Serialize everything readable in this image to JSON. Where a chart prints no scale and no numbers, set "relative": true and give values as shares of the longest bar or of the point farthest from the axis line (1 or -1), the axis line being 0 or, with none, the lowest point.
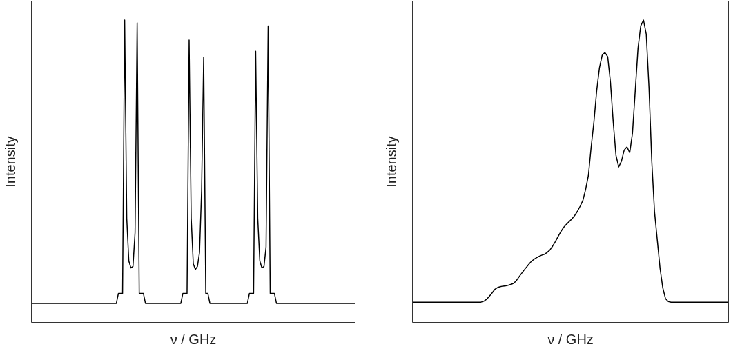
{
  "chart_data": [
    {
      "type": "line",
      "xlabel": "ν / GHz",
      "ylabel": "Intensity",
      "relative": true,
      "grid": false,
      "legend": false,
      "marker": "none",
      "line_style": "solid",
      "categories": [
        null,
        null,
        null,
        null,
        null,
        null,
        null,
        null,
        null,
        null,
        null,
        null,
        null,
        null,
        null,
        null,
        null,
        null,
        null,
        null,
        null,
        null,
        null,
        null,
        null,
        null,
        null,
        null,
        null,
        null,
        null,
        null,
        null,
        null,
        null,
        null,
        null,
        null,
        null,
        null,
        null,
        null,
        null,
        null,
        null,
        null,
        null,
        null,
        null,
        null,
        null,
        null,
        null,
        null,
        null,
        null,
        null,
        null,
        null,
        null,
        null,
        null,
        null,
        null,
        null,
        null,
        null,
        null,
        null,
        null,
        null,
        null,
        null,
        null,
        null,
        null,
        null,
        null,
        null,
        null,
        null,
        null,
        null,
        null,
        null,
        null,
        null,
        null,
        null,
        null,
        null,
        null,
        null,
        null,
        null,
        null,
        null,
        null,
        null,
        null,
        null,
        null,
        null,
        null,
        null,
        null,
        null,
        null,
        null,
        null,
        null,
        null,
        null,
        null,
        null,
        null,
        null,
        null,
        null,
        null,
        null,
        null,
        null,
        null,
        null,
        null,
        null,
        null,
        null,
        null,
        null,
        null,
        null,
        null,
        null,
        null,
        null,
        null,
        null,
        null,
        null,
        null,
        null,
        null,
        null,
        null,
        null,
        null,
        null,
        null,
        null,
        null,
        null,
        null,
        null,
        null,
        null
      ],
      "series": [
        {
          "color": "#000000",
          "values": [
            0.064,
            0.064,
            0.064,
            0.064,
            0.064,
            0.064,
            0.064,
            0.064,
            0.064,
            0.064,
            0.064,
            0.064,
            0.064,
            0.064,
            0.064,
            0.064,
            0.064,
            0.064,
            0.064,
            0.064,
            0.064,
            0.064,
            0.064,
            0.064,
            0.064,
            0.064,
            0.064,
            0.064,
            0.064,
            0.064,
            0.064,
            0.064,
            0.064,
            0.064,
            0.064,
            0.064,
            0.064,
            0.064,
            0.064,
            0.064,
            0.064,
            0.064,
            0.097,
            0.097,
            0.097,
            1.0,
            0.345,
            0.204,
            0.181,
            0.186,
            0.298,
            0.991,
            0.097,
            0.097,
            0.097,
            0.064,
            0.064,
            0.064,
            0.064,
            0.064,
            0.064,
            0.064,
            0.064,
            0.064,
            0.064,
            0.064,
            0.064,
            0.064,
            0.064,
            0.064,
            0.064,
            0.064,
            0.064,
            0.097,
            0.097,
            0.097,
            0.934,
            0.345,
            0.195,
            0.176,
            0.186,
            0.232,
            0.438,
            0.878,
            0.097,
            0.097,
            0.064,
            0.064,
            0.064,
            0.064,
            0.064,
            0.064,
            0.064,
            0.064,
            0.064,
            0.064,
            0.064,
            0.064,
            0.064,
            0.064,
            0.064,
            0.064,
            0.064,
            0.064,
            0.064,
            0.097,
            0.097,
            0.097,
            0.897,
            0.345,
            0.204,
            0.181,
            0.186,
            0.251,
            0.981,
            0.097,
            0.097,
            0.097,
            0.064,
            0.064,
            0.064,
            0.064,
            0.064,
            0.064,
            0.064,
            0.064,
            0.064,
            0.064,
            0.064,
            0.064,
            0.064,
            0.064,
            0.064,
            0.064,
            0.064,
            0.064,
            0.064,
            0.064,
            0.064,
            0.064,
            0.064,
            0.064,
            0.064,
            0.064,
            0.064,
            0.064,
            0.064,
            0.064,
            0.064,
            0.064,
            0.064,
            0.064,
            0.064,
            0.064,
            0.064,
            0.064,
            0.064
          ]
        }
      ]
    },
    {
      "type": "line",
      "xlabel": "ν / GHz",
      "ylabel": "Intensity",
      "relative": true,
      "grid": false,
      "legend": false,
      "marker": "none",
      "line_style": "solid",
      "categories": [
        null,
        null,
        null,
        null,
        null,
        null,
        null,
        null,
        null,
        null,
        null,
        null,
        null,
        null,
        null,
        null,
        null,
        null,
        null,
        null,
        null,
        null,
        null,
        null,
        null,
        null,
        null,
        null,
        null,
        null,
        null,
        null,
        null,
        null,
        null,
        null,
        null,
        null,
        null,
        null,
        null,
        null,
        null,
        null,
        null,
        null,
        null,
        null,
        null,
        null,
        null,
        null,
        null,
        null,
        null,
        null,
        null,
        null,
        null,
        null,
        null,
        null,
        null,
        null,
        null,
        null,
        null,
        null,
        null,
        null,
        null,
        null,
        null,
        null,
        null,
        null,
        null,
        null,
        null,
        null,
        null,
        null,
        null,
        null,
        null,
        null,
        null,
        null,
        null,
        null,
        null,
        null,
        null,
        null,
        null,
        null,
        null,
        null,
        null,
        null,
        null,
        null,
        null,
        null,
        null,
        null,
        null,
        null,
        null,
        null,
        null,
        null,
        null,
        null,
        null,
        null
      ],
      "series": [
        {
          "color": "#000000",
          "values": [
            0.068,
            0.068,
            0.068,
            0.068,
            0.068,
            0.068,
            0.068,
            0.068,
            0.068,
            0.068,
            0.068,
            0.068,
            0.068,
            0.068,
            0.068,
            0.068,
            0.068,
            0.068,
            0.068,
            0.068,
            0.068,
            0.068,
            0.068,
            0.068,
            0.068,
            0.068,
            0.071,
            0.077,
            0.087,
            0.098,
            0.11,
            0.116,
            0.119,
            0.121,
            0.122,
            0.124,
            0.127,
            0.131,
            0.141,
            0.154,
            0.166,
            0.178,
            0.189,
            0.2,
            0.208,
            0.214,
            0.219,
            0.223,
            0.226,
            0.232,
            0.24,
            0.253,
            0.268,
            0.285,
            0.301,
            0.315,
            0.325,
            0.334,
            0.343,
            0.354,
            0.368,
            0.385,
            0.404,
            0.441,
            0.487,
            0.581,
            0.664,
            0.767,
            0.842,
            0.884,
            0.893,
            0.879,
            0.795,
            0.664,
            0.553,
            0.515,
            0.534,
            0.571,
            0.581,
            0.562,
            0.627,
            0.767,
            0.907,
            0.981,
            1.0,
            0.953,
            0.776,
            0.534,
            0.366,
            0.273,
            0.18,
            0.115,
            0.079,
            0.07,
            0.068,
            0.068,
            0.068,
            0.068,
            0.068,
            0.068,
            0.068,
            0.068,
            0.068,
            0.068,
            0.068,
            0.068,
            0.068,
            0.068,
            0.068,
            0.068,
            0.068,
            0.068,
            0.068,
            0.068,
            0.068,
            0.068
          ]
        }
      ]
    }
  ]
}
